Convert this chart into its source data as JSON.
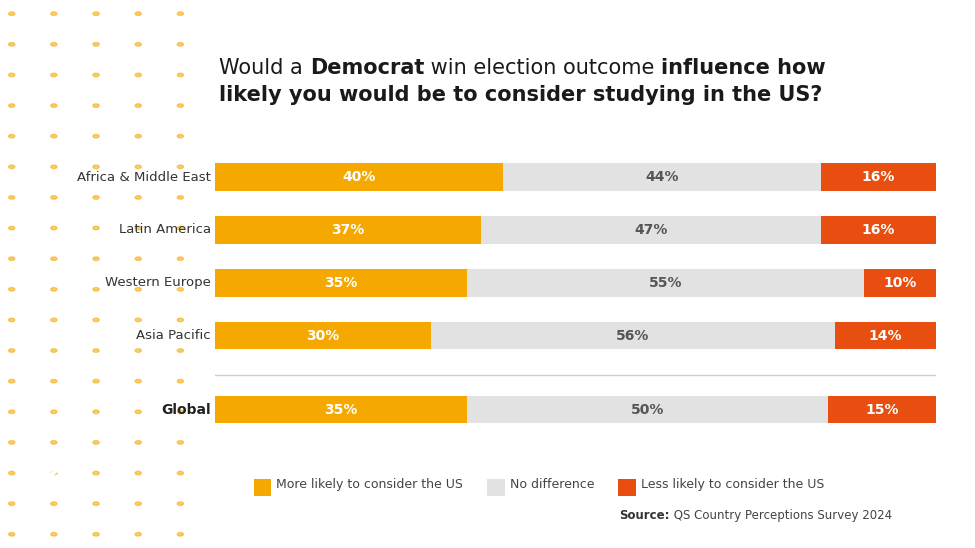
{
  "categories": [
    "Africa & Middle East",
    "Latin America",
    "Western Europe",
    "Asia Pacific"
  ],
  "global_label": "Global",
  "more_likely": [
    40,
    37,
    35,
    30
  ],
  "no_difference": [
    44,
    47,
    55,
    56
  ],
  "less_likely": [
    16,
    16,
    10,
    14
  ],
  "global_more": 35,
  "global_no_diff": 50,
  "global_less": 15,
  "color_more": "#F5A800",
  "color_no_diff": "#E2E2E2",
  "color_less": "#E84E0F",
  "bg_color": "#FFFFFF",
  "dot_color": "#F5A800",
  "dot_alpha": 0.55,
  "legend_more": "More likely to consider the US",
  "legend_no_diff": "No difference",
  "legend_less": "Less likely to consider the US",
  "source_bold": "Source:",
  "source_rest": " QS Country Perceptions Survey 2024",
  "bar_height": 0.52,
  "title_fontsize": 15,
  "label_fontsize": 9.5,
  "bar_text_fontsize": 10,
  "legend_fontsize": 9
}
